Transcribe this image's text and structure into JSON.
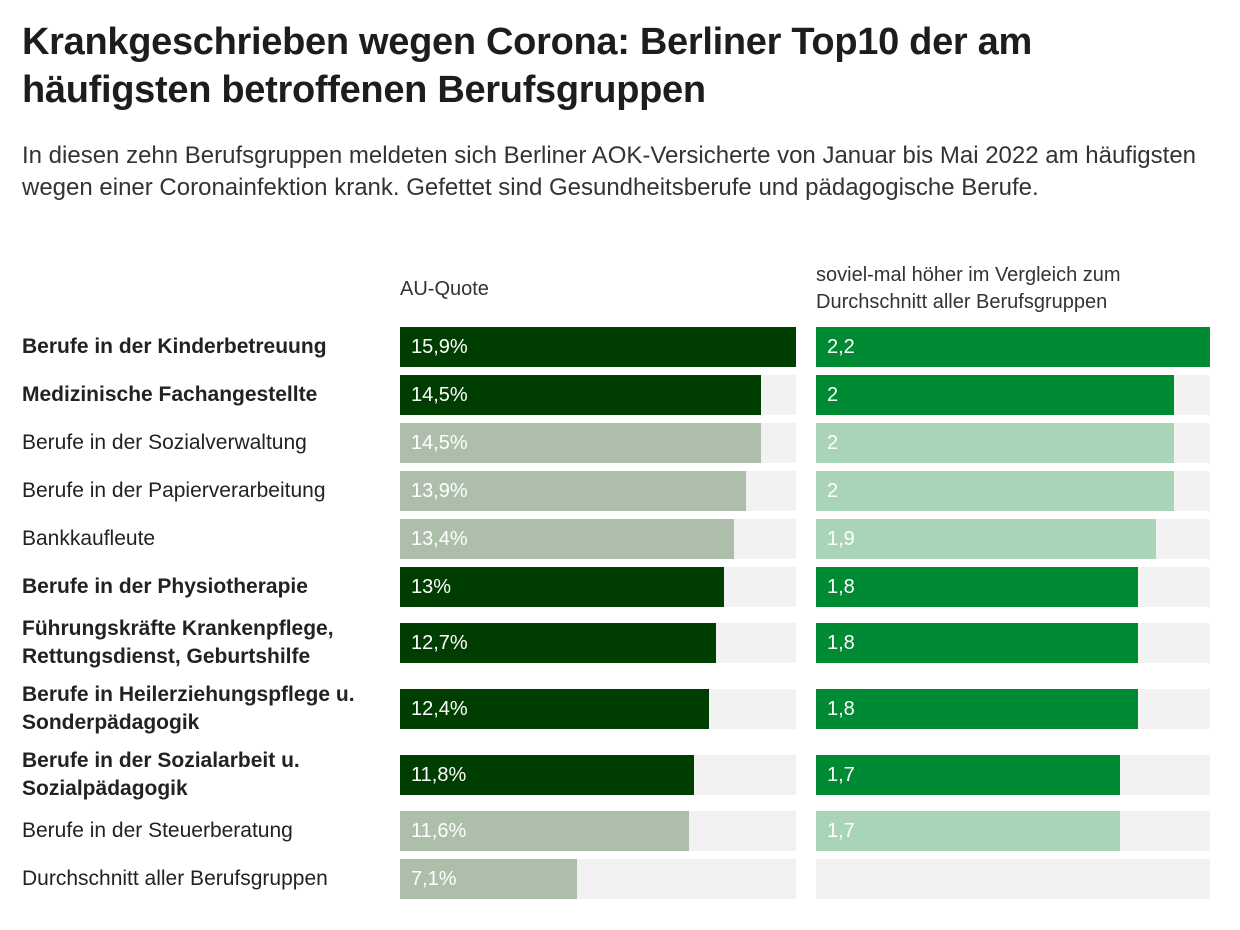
{
  "title": "Krankgeschrieben wegen Corona: Berliner Top10 der am häufigsten betroffenen Berufsgruppen",
  "subtitle": "In diesen zehn Berufsgruppen meldeten sich Berliner AOK-Versicherte von Januar bis Mai 2022 am häufigsten wegen einer Coronainfektion krank. Gefettet sind Gesundheitsberufe und pädagogische Berufe.",
  "colors": {
    "au_highlight": "#003d00",
    "au_normal": "#adbfab",
    "ratio_highlight": "#008a33",
    "ratio_normal": "#aad4b8",
    "track": "#f2f2f2"
  },
  "chart_data": {
    "type": "bar",
    "columns": [
      {
        "header": "AU-Quote",
        "max": 15.9
      },
      {
        "header": "soviel-mal höher im Vergleich zum Durchschnitt aller Berufsgruppen",
        "max": 2.2
      }
    ],
    "rows": [
      {
        "label": "Berufe in der Kinderbetreuung",
        "bold": true,
        "au": 15.9,
        "au_label": "15,9%",
        "ratio": 2.2,
        "ratio_label": "2,2"
      },
      {
        "label": "Medizinische Fachangestellte",
        "bold": true,
        "au": 14.5,
        "au_label": "14,5%",
        "ratio": 2,
        "ratio_label": "2"
      },
      {
        "label": "Berufe in der Sozialverwaltung",
        "bold": false,
        "au": 14.5,
        "au_label": "14,5%",
        "ratio": 2,
        "ratio_label": "2"
      },
      {
        "label": "Berufe in der Papierverarbeitung",
        "bold": false,
        "au": 13.9,
        "au_label": "13,9%",
        "ratio": 2,
        "ratio_label": "2"
      },
      {
        "label": "Bankkaufleute",
        "bold": false,
        "au": 13.4,
        "au_label": "13,4%",
        "ratio": 1.9,
        "ratio_label": "1,9"
      },
      {
        "label": "Berufe in der Physiotherapie",
        "bold": true,
        "au": 13,
        "au_label": "13%",
        "ratio": 1.8,
        "ratio_label": "1,8"
      },
      {
        "label": "Führungskräfte Krankenpflege, Rettungsdienst, Geburtshilfe",
        "bold": true,
        "au": 12.7,
        "au_label": "12,7%",
        "ratio": 1.8,
        "ratio_label": "1,8"
      },
      {
        "label": "Berufe in Heilerziehungspflege u. Sonderpädagogik",
        "bold": true,
        "au": 12.4,
        "au_label": "12,4%",
        "ratio": 1.8,
        "ratio_label": "1,8"
      },
      {
        "label": "Berufe in der Sozialarbeit u. Sozialpädagogik",
        "bold": true,
        "au": 11.8,
        "au_label": "11,8%",
        "ratio": 1.7,
        "ratio_label": "1,7"
      },
      {
        "label": "Berufe in der Steuerberatung",
        "bold": false,
        "au": 11.6,
        "au_label": "11,6%",
        "ratio": 1.7,
        "ratio_label": "1,7"
      },
      {
        "label": "Durchschnitt aller Berufsgruppen",
        "bold": false,
        "au": 7.1,
        "au_label": "7,1%",
        "ratio": null,
        "ratio_label": ""
      }
    ]
  }
}
